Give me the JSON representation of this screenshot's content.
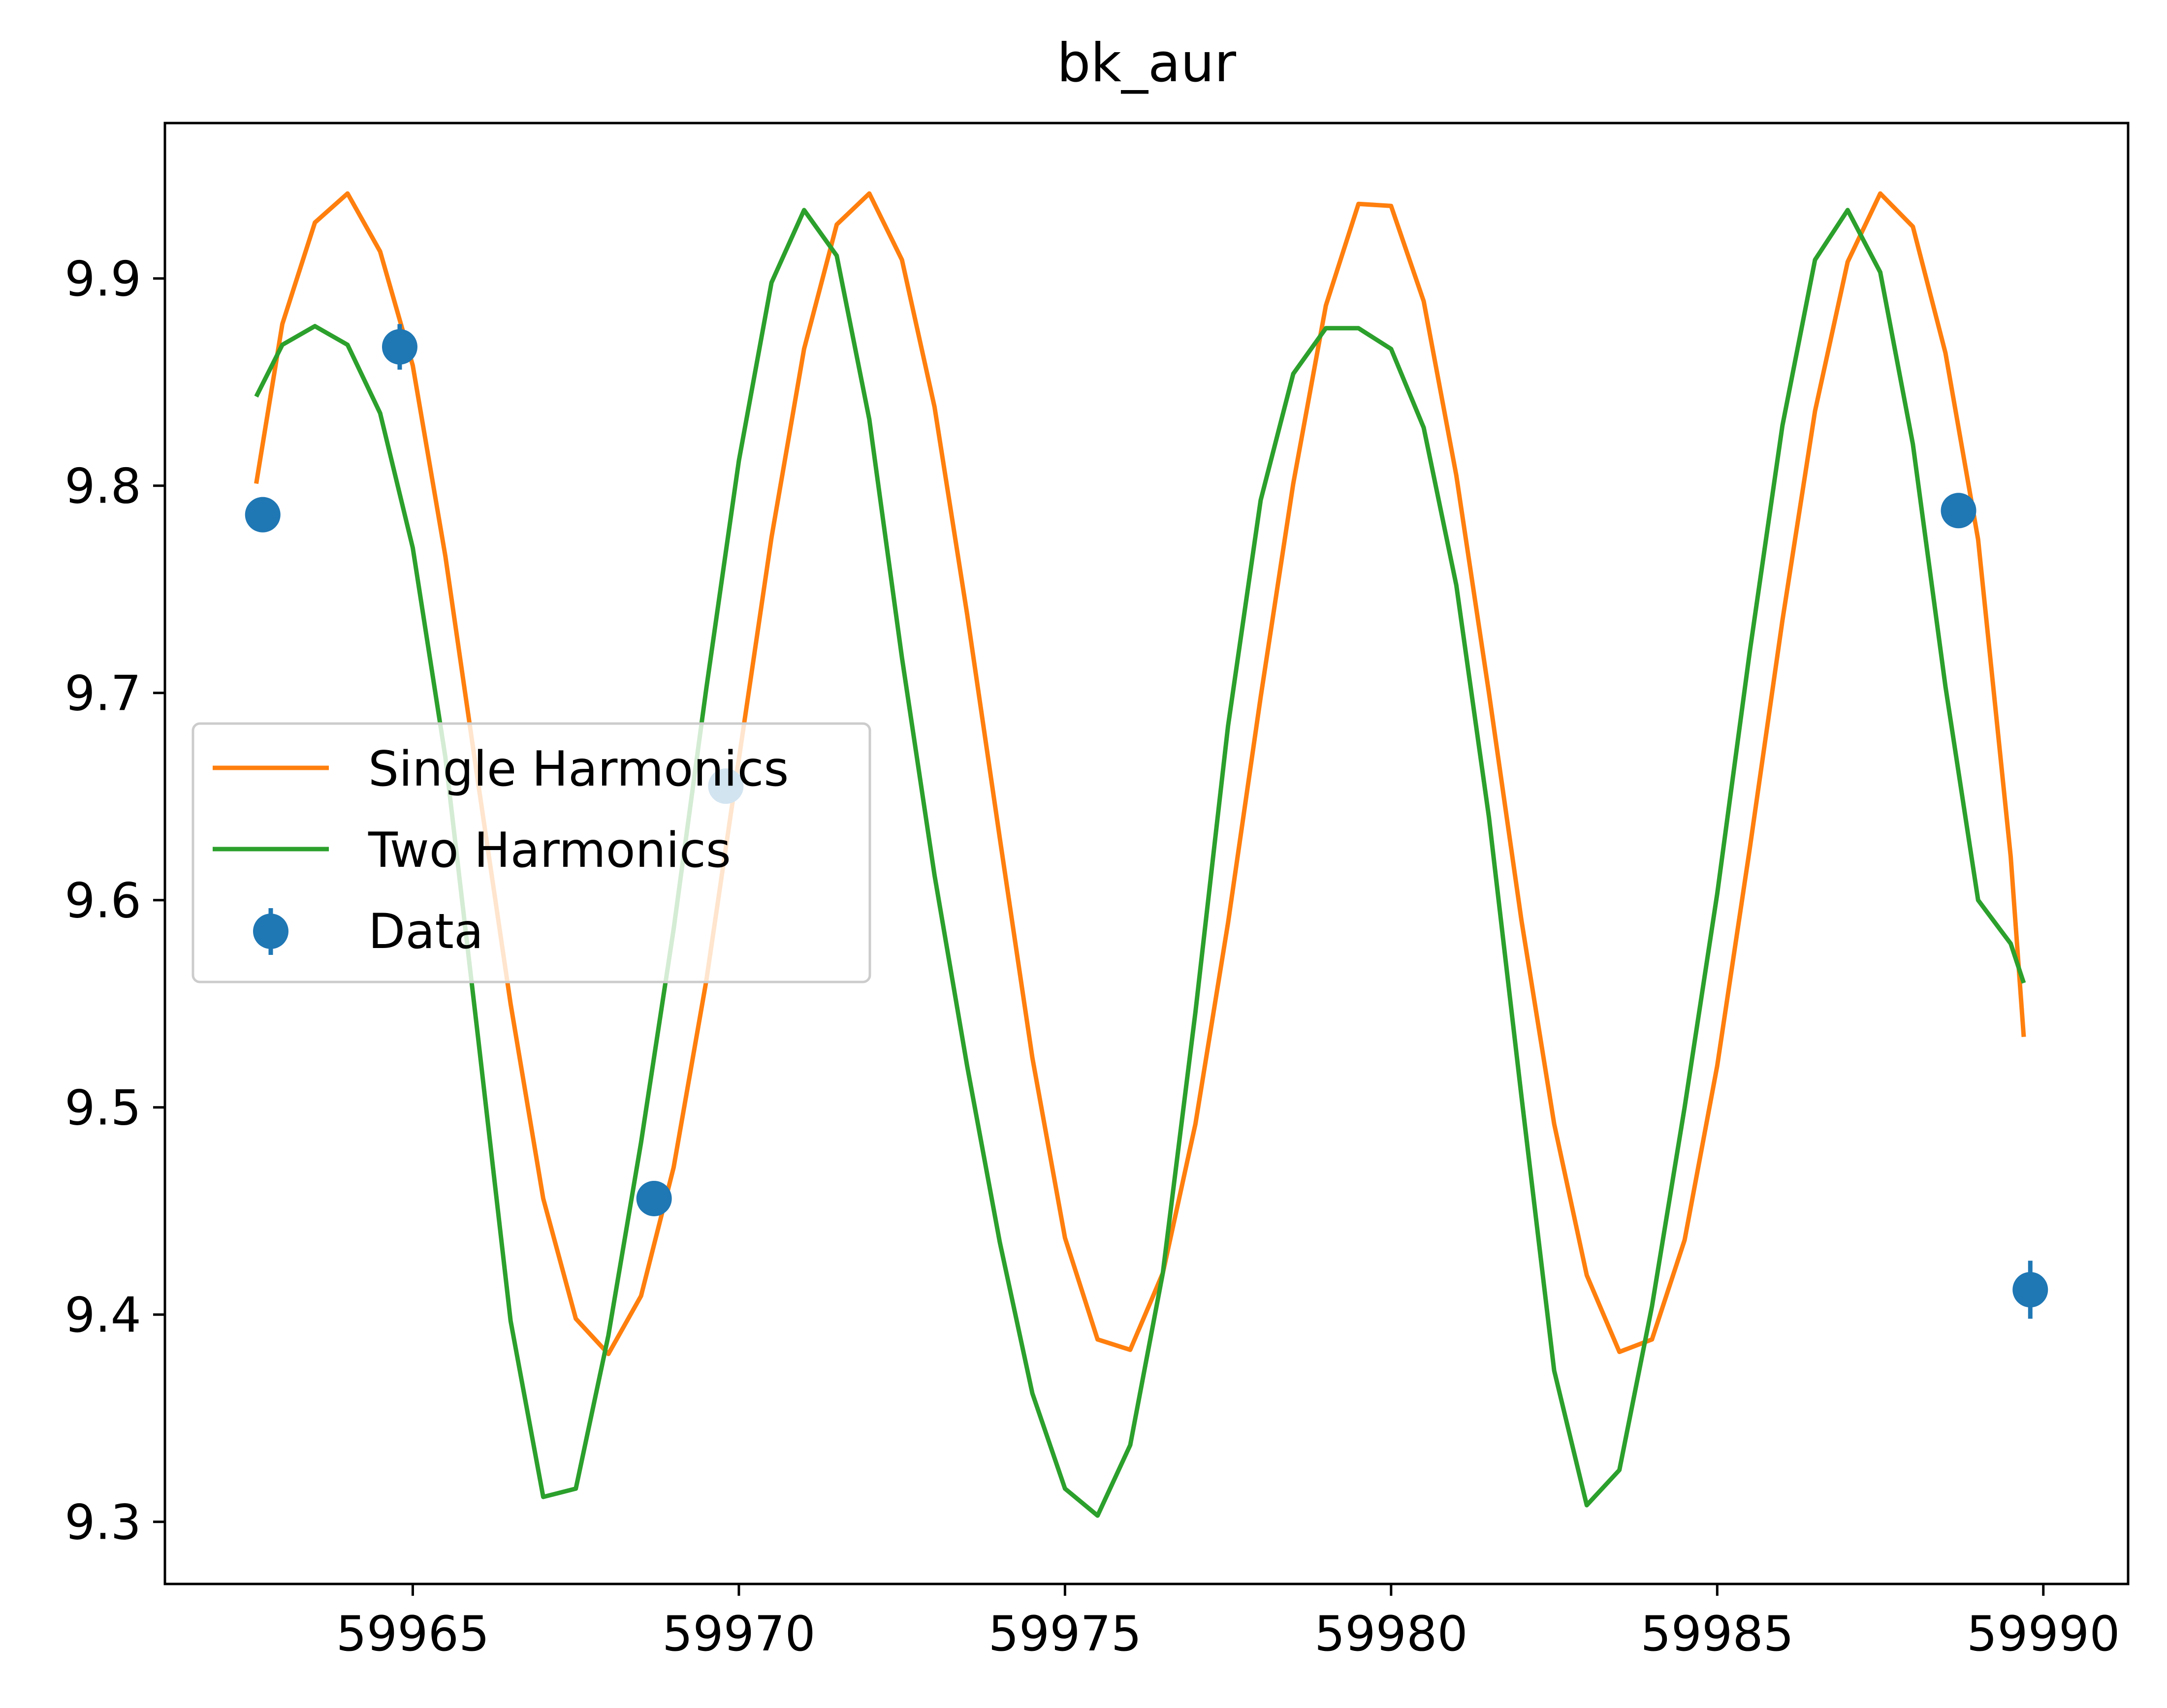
{
  "chart_data": {
    "type": "line",
    "title": "bk_aur",
    "xlabel": "",
    "ylabel": "",
    "xlim": [
      59961.2,
      59991.3
    ],
    "ylim": [
      9.27,
      9.975
    ],
    "xticks": [
      59965,
      59970,
      59975,
      59980,
      59985,
      59990
    ],
    "yticks": [
      9.3,
      9.4,
      9.5,
      9.6,
      9.7,
      9.8,
      9.9
    ],
    "xtick_labels": [
      "59965",
      "59970",
      "59975",
      "59980",
      "59985",
      "59990"
    ],
    "ytick_labels": [
      "9.3",
      "9.4",
      "9.5",
      "9.6",
      "9.7",
      "9.8",
      "9.9"
    ],
    "grid": false,
    "legend_position": "center-left",
    "series": [
      {
        "name": "Single Harmonics",
        "color": "#ff7f0e",
        "x": [
          59962.6,
          59963.0,
          59963.5,
          59964.0,
          59964.5,
          59965.0,
          59965.5,
          59966.0,
          59966.5,
          59967.0,
          59967.5,
          59968.0,
          59968.5,
          59969.0,
          59969.5,
          59970.0,
          59970.5,
          59971.0,
          59971.5,
          59972.0,
          59972.5,
          59973.0,
          59973.5,
          59974.0,
          59974.5,
          59975.0,
          59975.5,
          59976.0,
          59976.5,
          59977.0,
          59977.5,
          59978.0,
          59978.5,
          59979.0,
          59979.5,
          59980.0,
          59980.5,
          59981.0,
          59981.5,
          59982.0,
          59982.5,
          59983.0,
          59983.5,
          59984.0,
          59984.5,
          59985.0,
          59985.5,
          59986.0,
          59986.5,
          59987.0,
          59987.5,
          59988.0,
          59988.5,
          59989.0,
          59989.5,
          59989.7
        ],
        "y": [
          9.801,
          9.878,
          9.927,
          9.941,
          9.913,
          9.858,
          9.766,
          9.657,
          9.55,
          9.456,
          9.398,
          9.381,
          9.409,
          9.471,
          9.561,
          9.668,
          9.775,
          9.866,
          9.926,
          9.941,
          9.909,
          9.838,
          9.738,
          9.63,
          9.524,
          9.437,
          9.388,
          9.383,
          9.42,
          9.492,
          9.589,
          9.698,
          9.801,
          9.887,
          9.936,
          9.935,
          9.889,
          9.805,
          9.7,
          9.59,
          9.492,
          9.419,
          9.382,
          9.388,
          9.436,
          9.52,
          9.625,
          9.735,
          9.836,
          9.908,
          9.941,
          9.925,
          9.864,
          9.774,
          9.621,
          9.534
        ]
      },
      {
        "name": "Two Harmonics",
        "color": "#2ca02c",
        "x": [
          59962.6,
          59963.0,
          59963.5,
          59964.0,
          59964.5,
          59965.0,
          59965.5,
          59966.0,
          59966.5,
          59967.0,
          59967.5,
          59968.0,
          59968.5,
          59969.0,
          59969.5,
          59970.0,
          59970.5,
          59971.0,
          59971.5,
          59972.0,
          59972.5,
          59973.0,
          59973.5,
          59974.0,
          59974.5,
          59975.0,
          59975.5,
          59976.0,
          59976.5,
          59977.0,
          59977.5,
          59978.0,
          59978.5,
          59979.0,
          59979.5,
          59980.0,
          59980.5,
          59981.0,
          59981.5,
          59982.0,
          59982.5,
          59983.0,
          59983.5,
          59984.0,
          59984.5,
          59985.0,
          59985.5,
          59986.0,
          59986.5,
          59987.0,
          59987.5,
          59988.0,
          59988.5,
          59989.0,
          59989.5,
          59989.7
        ],
        "y": [
          9.843,
          9.868,
          9.877,
          9.868,
          9.835,
          9.77,
          9.669,
          9.534,
          9.397,
          9.312,
          9.316,
          9.39,
          9.483,
          9.586,
          9.702,
          9.812,
          9.898,
          9.933,
          9.911,
          9.832,
          9.717,
          9.612,
          9.52,
          9.435,
          9.362,
          9.316,
          9.303,
          9.337,
          9.42,
          9.546,
          9.684,
          9.793,
          9.854,
          9.876,
          9.876,
          9.866,
          9.828,
          9.752,
          9.64,
          9.505,
          9.373,
          9.308,
          9.325,
          9.404,
          9.5,
          9.603,
          9.72,
          9.829,
          9.909,
          9.933,
          9.903,
          9.82,
          9.703,
          9.6,
          9.579,
          9.56
        ]
      }
    ],
    "scatter": {
      "name": "Data",
      "color": "#1f77b4",
      "x": [
        59962.7,
        59964.8,
        59968.7,
        59969.8,
        59988.7,
        59989.8
      ],
      "y": [
        9.786,
        9.867,
        9.456,
        9.655,
        9.788,
        9.412
      ],
      "yerr": [
        0.006,
        0.011,
        0.006,
        0.006,
        0.006,
        0.014
      ]
    }
  }
}
